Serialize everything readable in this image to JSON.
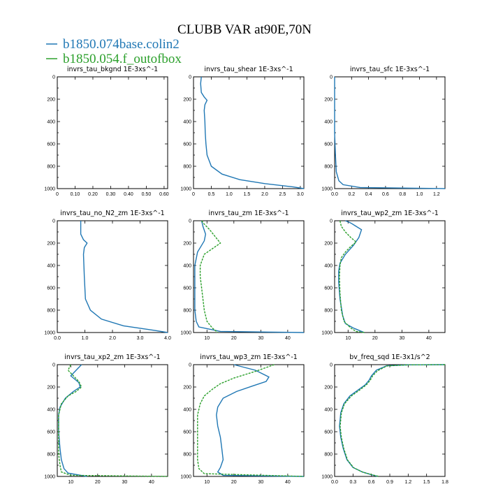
{
  "figure": {
    "title": "CLUBB VAR at90E,70N",
    "legend": [
      {
        "label": "b1850.074base.colin2",
        "color": "#1f77b4"
      },
      {
        "label": "b1850.054.f_outofbox",
        "color": "#2ca02c"
      }
    ]
  },
  "chart_data": [
    {
      "type": "line",
      "title": "invrs_tau_bkgnd   1E-3xs^-1",
      "xlim": [
        0,
        0.62
      ],
      "ylim": [
        1000,
        0
      ],
      "x_ticks": [
        "0",
        "0.10",
        "0.20",
        "0.30",
        "0.40",
        "0.50",
        "0.60"
      ],
      "x_tick_values": [
        0,
        0.1,
        0.2,
        0.3,
        0.4,
        0.5,
        0.6
      ],
      "y_ticks": [
        "0",
        "200",
        "400",
        "600",
        "800",
        "1000"
      ],
      "series": []
    },
    {
      "type": "line",
      "title": "invrs_tau_shear   1E-3xs^-1",
      "xlim": [
        0,
        3.1
      ],
      "ylim": [
        1000,
        0
      ],
      "x_ticks": [
        "0",
        "0.5",
        "1.0",
        "1.5",
        "2.0",
        "2.5",
        "3.0"
      ],
      "x_tick_values": [
        0,
        0.5,
        1.0,
        1.5,
        2.0,
        2.5,
        3.0
      ],
      "y_ticks": [
        "0",
        "200",
        "400",
        "600",
        "800",
        "1000"
      ],
      "series": [
        {
          "color": "#1f77b4",
          "dashed": false,
          "points": [
            [
              0.22,
              0
            ],
            [
              0.2,
              60
            ],
            [
              0.22,
              140
            ],
            [
              0.3,
              180
            ],
            [
              0.38,
              210
            ],
            [
              0.32,
              250
            ],
            [
              0.3,
              300
            ],
            [
              0.32,
              400
            ],
            [
              0.33,
              500
            ],
            [
              0.35,
              600
            ],
            [
              0.38,
              700
            ],
            [
              0.5,
              800
            ],
            [
              0.8,
              870
            ],
            [
              1.3,
              920
            ],
            [
              2.0,
              955
            ],
            [
              2.8,
              985
            ],
            [
              3.1,
              1000
            ]
          ]
        }
      ]
    },
    {
      "type": "line",
      "title": "invrs_tau_sfc   1E-3xs^-1",
      "xlim": [
        0,
        1.3
      ],
      "ylim": [
        1000,
        0
      ],
      "x_ticks": [
        "0.0",
        "0.2",
        "0.4",
        "0.6",
        "0.8",
        "1.0",
        "1.2"
      ],
      "x_tick_values": [
        0,
        0.2,
        0.4,
        0.6,
        0.8,
        1.0,
        1.2
      ],
      "y_ticks": [
        "0",
        "200",
        "400",
        "600",
        "800",
        "1000"
      ],
      "series": [
        {
          "color": "#1f77b4",
          "dashed": false,
          "points": [
            [
              0.0,
              0
            ],
            [
              0.0,
              500
            ],
            [
              0.01,
              700
            ],
            [
              0.02,
              850
            ],
            [
              0.05,
              930
            ],
            [
              0.1,
              965
            ],
            [
              0.3,
              990
            ],
            [
              1.3,
              1000
            ]
          ]
        }
      ]
    },
    {
      "type": "line",
      "title": "invrs_tau_no_N2_zm   1E-3xs^-1",
      "xlim": [
        0,
        4.0
      ],
      "ylim": [
        1000,
        0
      ],
      "x_ticks": [
        "0.0",
        "1.0",
        "2.0",
        "3.0",
        "4.0"
      ],
      "x_tick_values": [
        0,
        1.0,
        2.0,
        3.0,
        4.0
      ],
      "y_ticks": [
        "0",
        "200",
        "400",
        "600",
        "800",
        "1000"
      ],
      "series": [
        {
          "color": "#1f77b4",
          "dashed": false,
          "points": [
            [
              0.85,
              0
            ],
            [
              0.85,
              120
            ],
            [
              0.95,
              170
            ],
            [
              1.08,
              200
            ],
            [
              0.98,
              240
            ],
            [
              0.95,
              300
            ],
            [
              0.98,
              500
            ],
            [
              1.02,
              700
            ],
            [
              1.2,
              800
            ],
            [
              1.6,
              880
            ],
            [
              2.4,
              940
            ],
            [
              3.5,
              980
            ],
            [
              4.0,
              1000
            ]
          ]
        }
      ]
    },
    {
      "type": "line",
      "title": "invrs_tau_zm   1E-3xs^-1",
      "xlim": [
        5,
        46
      ],
      "ylim": [
        1000,
        0
      ],
      "x_ticks": [
        "10",
        "20",
        "30",
        "40"
      ],
      "x_tick_values": [
        10,
        20,
        30,
        40
      ],
      "y_ticks": [
        "0",
        "200",
        "400",
        "600",
        "800",
        "1000"
      ],
      "series": [
        {
          "color": "#1f77b4",
          "dashed": false,
          "points": [
            [
              8,
              0
            ],
            [
              8.5,
              50
            ],
            [
              9.5,
              120
            ],
            [
              9,
              180
            ],
            [
              8,
              220
            ],
            [
              6.5,
              280
            ],
            [
              5.5,
              400
            ],
            [
              5.5,
              600
            ],
            [
              5.5,
              800
            ],
            [
              6,
              900
            ],
            [
              7,
              950
            ],
            [
              15,
              990
            ],
            [
              46,
              1000
            ]
          ]
        },
        {
          "color": "#2ca02c",
          "dashed": true,
          "points": [
            [
              8,
              0
            ],
            [
              9,
              30
            ],
            [
              11,
              80
            ],
            [
              13,
              140
            ],
            [
              15,
              200
            ],
            [
              12,
              250
            ],
            [
              9,
              300
            ],
            [
              7.5,
              400
            ],
            [
              7.5,
              500
            ],
            [
              8,
              600
            ],
            [
              8.5,
              700
            ],
            [
              9,
              800
            ],
            [
              10,
              900
            ],
            [
              12,
              960
            ],
            [
              14,
              1000
            ]
          ]
        }
      ]
    },
    {
      "type": "line",
      "title": "invrs_tau_wp2_zm   1E-3xs^-1",
      "xlim": [
        5,
        46
      ],
      "ylim": [
        1000,
        0
      ],
      "x_ticks": [
        "10",
        "20",
        "30",
        "40"
      ],
      "x_tick_values": [
        10,
        20,
        30,
        40
      ],
      "y_ticks": [
        "0",
        "200",
        "400",
        "600",
        "800",
        "1000"
      ],
      "series": [
        {
          "color": "#1f77b4",
          "dashed": false,
          "points": [
            [
              9,
              0
            ],
            [
              11,
              20
            ],
            [
              13,
              50
            ],
            [
              15,
              80
            ],
            [
              14,
              150
            ],
            [
              12,
              220
            ],
            [
              9,
              300
            ],
            [
              7,
              380
            ],
            [
              6.5,
              450
            ],
            [
              6.5,
              550
            ],
            [
              7,
              700
            ],
            [
              8,
              850
            ],
            [
              9,
              920
            ],
            [
              12,
              960
            ],
            [
              14,
              980
            ],
            [
              16,
              1000
            ]
          ]
        },
        {
          "color": "#2ca02c",
          "dashed": true,
          "points": [
            [
              7,
              0
            ],
            [
              7.5,
              50
            ],
            [
              9,
              100
            ],
            [
              11,
              150
            ],
            [
              13,
              190
            ],
            [
              11,
              230
            ],
            [
              9,
              280
            ],
            [
              7.5,
              330
            ],
            [
              7,
              400
            ],
            [
              6.8,
              500
            ],
            [
              7,
              650
            ],
            [
              7.5,
              800
            ],
            [
              8.5,
              900
            ],
            [
              11,
              960
            ],
            [
              13,
              990
            ],
            [
              16,
              1000
            ]
          ]
        }
      ]
    },
    {
      "type": "line",
      "title": "invrs_tau_xp2_zm   1E-3xs^-1",
      "xlim": [
        5,
        46
      ],
      "ylim": [
        1000,
        0
      ],
      "x_ticks": [
        "10",
        "20",
        "30",
        "40"
      ],
      "x_tick_values": [
        10,
        20,
        30,
        40
      ],
      "y_ticks": [
        "0",
        "200",
        "400",
        "600",
        "800",
        "1000"
      ],
      "series": [
        {
          "color": "#1f77b4",
          "dashed": false,
          "points": [
            [
              14,
              0
            ],
            [
              12,
              50
            ],
            [
              10,
              100
            ],
            [
              13,
              160
            ],
            [
              13.5,
              200
            ],
            [
              11,
              240
            ],
            [
              8,
              300
            ],
            [
              6,
              380
            ],
            [
              5.5,
              450
            ],
            [
              5.5,
              600
            ],
            [
              6,
              750
            ],
            [
              6.5,
              850
            ],
            [
              7.5,
              930
            ],
            [
              9,
              970
            ],
            [
              16,
              1000
            ]
          ]
        },
        {
          "color": "#2ca02c",
          "dashed": true,
          "points": [
            [
              10,
              0
            ],
            [
              9,
              50
            ],
            [
              11,
              100
            ],
            [
              13,
              150
            ],
            [
              14,
              200
            ],
            [
              12,
              240
            ],
            [
              9,
              280
            ],
            [
              6.5,
              350
            ],
            [
              5.5,
              450
            ],
            [
              5.5,
              600
            ],
            [
              5.5,
              800
            ],
            [
              6,
              900
            ],
            [
              6.5,
              960
            ],
            [
              10,
              990
            ],
            [
              46,
              1000
            ]
          ]
        }
      ]
    },
    {
      "type": "line",
      "title": "invrs_tau_wp3_zm   1E-3xs^-1",
      "xlim": [
        5,
        46
      ],
      "ylim": [
        1000,
        0
      ],
      "x_ticks": [
        "10",
        "20",
        "30",
        "40"
      ],
      "x_tick_values": [
        10,
        20,
        30,
        40
      ],
      "y_ticks": [
        "0",
        "200",
        "400",
        "600",
        "800",
        "1000"
      ],
      "series": [
        {
          "color": "#1f77b4",
          "dashed": false,
          "points": [
            [
              20,
              0
            ],
            [
              28,
              50
            ],
            [
              33,
              110
            ],
            [
              32,
              150
            ],
            [
              27,
              190
            ],
            [
              21,
              240
            ],
            [
              16,
              300
            ],
            [
              14,
              380
            ],
            [
              13.5,
              450
            ],
            [
              14,
              550
            ],
            [
              15,
              650
            ],
            [
              15.5,
              750
            ],
            [
              16,
              850
            ],
            [
              15,
              920
            ],
            [
              14,
              960
            ],
            [
              16,
              990
            ],
            [
              46,
              1000
            ]
          ]
        },
        {
          "color": "#2ca02c",
          "dashed": true,
          "points": [
            [
              35,
              0
            ],
            [
              28,
              60
            ],
            [
              20,
              120
            ],
            [
              15,
              170
            ],
            [
              12,
              220
            ],
            [
              9,
              280
            ],
            [
              7.5,
              350
            ],
            [
              6.5,
              450
            ],
            [
              6.5,
              600
            ],
            [
              6.5,
              750
            ],
            [
              6.5,
              850
            ],
            [
              7,
              930
            ],
            [
              9,
              975
            ],
            [
              46,
              1000
            ]
          ]
        }
      ]
    },
    {
      "type": "line",
      "title": "bv_freq_sqd   1E-3x1/s^2",
      "xlim": [
        0,
        1.8
      ],
      "ylim": [
        1000,
        0
      ],
      "x_ticks": [
        "0.0",
        "0.3",
        "0.6",
        "0.9",
        "1.2",
        "1.5",
        "1.8"
      ],
      "x_tick_values": [
        0,
        0.3,
        0.6,
        0.9,
        1.2,
        1.5,
        1.8
      ],
      "y_ticks": [
        "0",
        "200",
        "400",
        "600",
        "800",
        "1000"
      ],
      "series": [
        {
          "color": "#1f77b4",
          "dashed": false,
          "points": [
            [
              1.8,
              0
            ],
            [
              1.2,
              2
            ],
            [
              0.85,
              10
            ],
            [
              0.68,
              50
            ],
            [
              0.6,
              100
            ],
            [
              0.56,
              140
            ],
            [
              0.5,
              180
            ],
            [
              0.4,
              220
            ],
            [
              0.25,
              280
            ],
            [
              0.15,
              350
            ],
            [
              0.1,
              430
            ],
            [
              0.08,
              550
            ],
            [
              0.1,
              650
            ],
            [
              0.14,
              750
            ],
            [
              0.2,
              850
            ],
            [
              0.3,
              920
            ],
            [
              0.45,
              960
            ],
            [
              0.6,
              985
            ],
            [
              0.7,
              1000
            ]
          ]
        },
        {
          "color": "#2ca02c",
          "dashed": true,
          "points": [
            [
              1.8,
              0
            ],
            [
              1.2,
              2
            ],
            [
              0.85,
              12
            ],
            [
              0.7,
              55
            ],
            [
              0.62,
              100
            ],
            [
              0.58,
              140
            ],
            [
              0.52,
              180
            ],
            [
              0.42,
              222
            ],
            [
              0.27,
              282
            ],
            [
              0.16,
              352
            ],
            [
              0.11,
              432
            ],
            [
              0.09,
              552
            ],
            [
              0.11,
              652
            ],
            [
              0.15,
              752
            ],
            [
              0.21,
              852
            ],
            [
              0.31,
              922
            ],
            [
              0.46,
              962
            ],
            [
              0.62,
              986
            ],
            [
              0.72,
              1000
            ]
          ]
        }
      ]
    }
  ]
}
